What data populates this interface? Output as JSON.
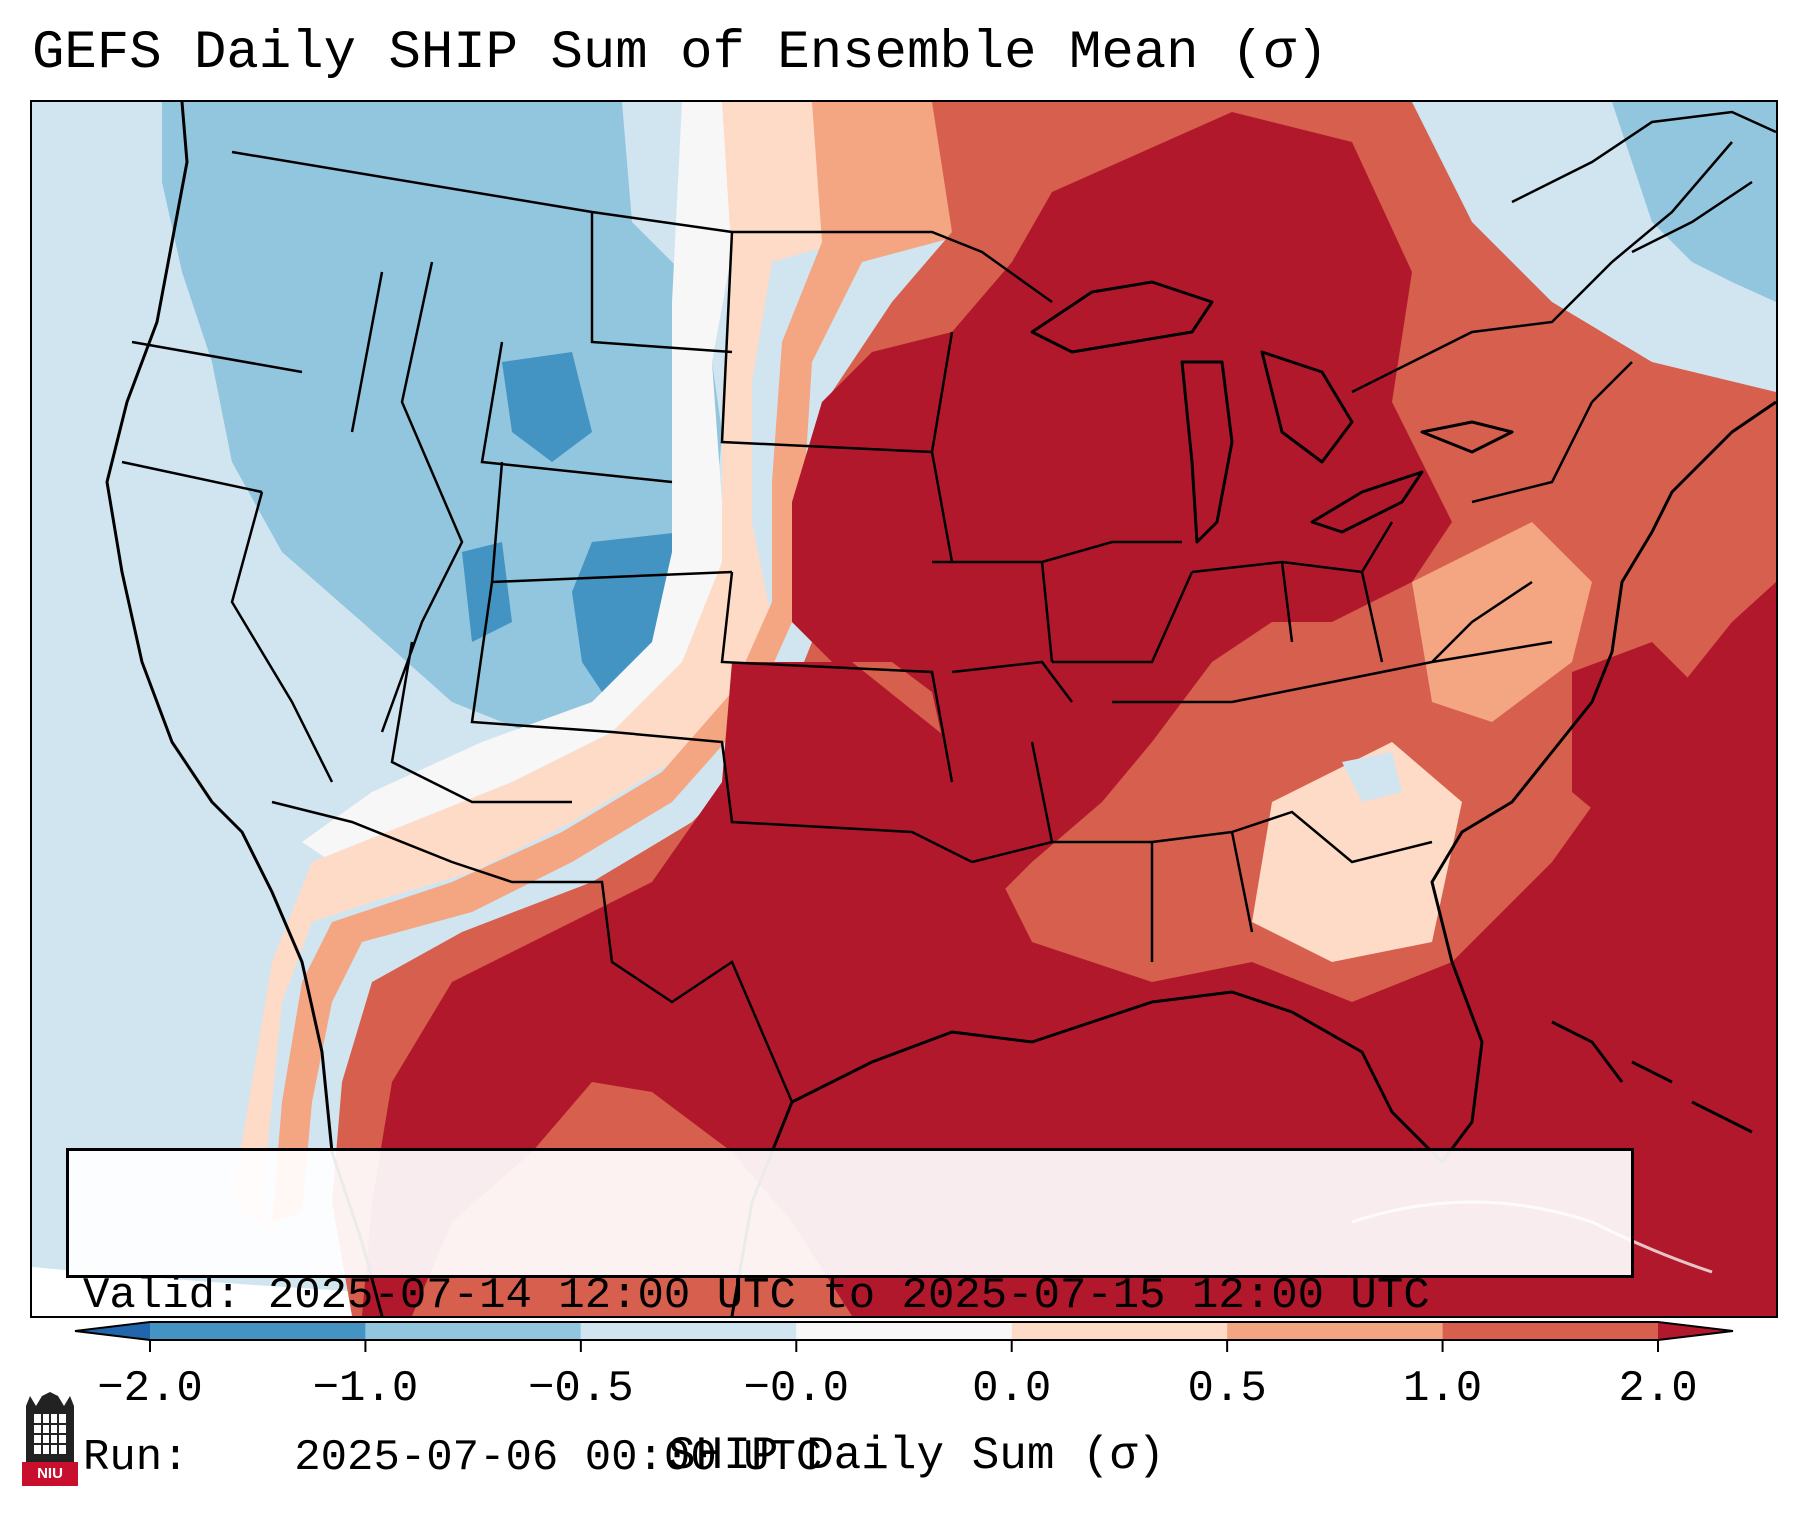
{
  "title": "GEFS Daily SHIP Sum of Ensemble Mean (σ)",
  "info": {
    "valid_label": "Valid:",
    "valid_value": "2025-07-14 12:00 UTC to 2025-07-15 12:00 UTC",
    "run_label": "Run:",
    "run_value": "2025-07-06 00:00 UTC"
  },
  "colorbar": {
    "title": "SHIP Daily Sum (σ)",
    "ticks": [
      "−2.0",
      "−1.0",
      "−0.5",
      "−0.0",
      "0.0",
      "0.5",
      "1.0",
      "2.0"
    ],
    "colors": [
      "#4393c3",
      "#92c5de",
      "#d1e5f0",
      "#f7f7f7",
      "#fddbc7",
      "#f4a582",
      "#d6604d",
      "#b2182b"
    ],
    "under_color": "#2166ac",
    "over_color": "#67001f"
  },
  "logo": {
    "text": "NIU",
    "icon": "niu-building-icon"
  },
  "map": {
    "region": "Continental United States",
    "layers": [
      "state-borders",
      "coastlines",
      "ship-anomaly-shading"
    ]
  }
}
